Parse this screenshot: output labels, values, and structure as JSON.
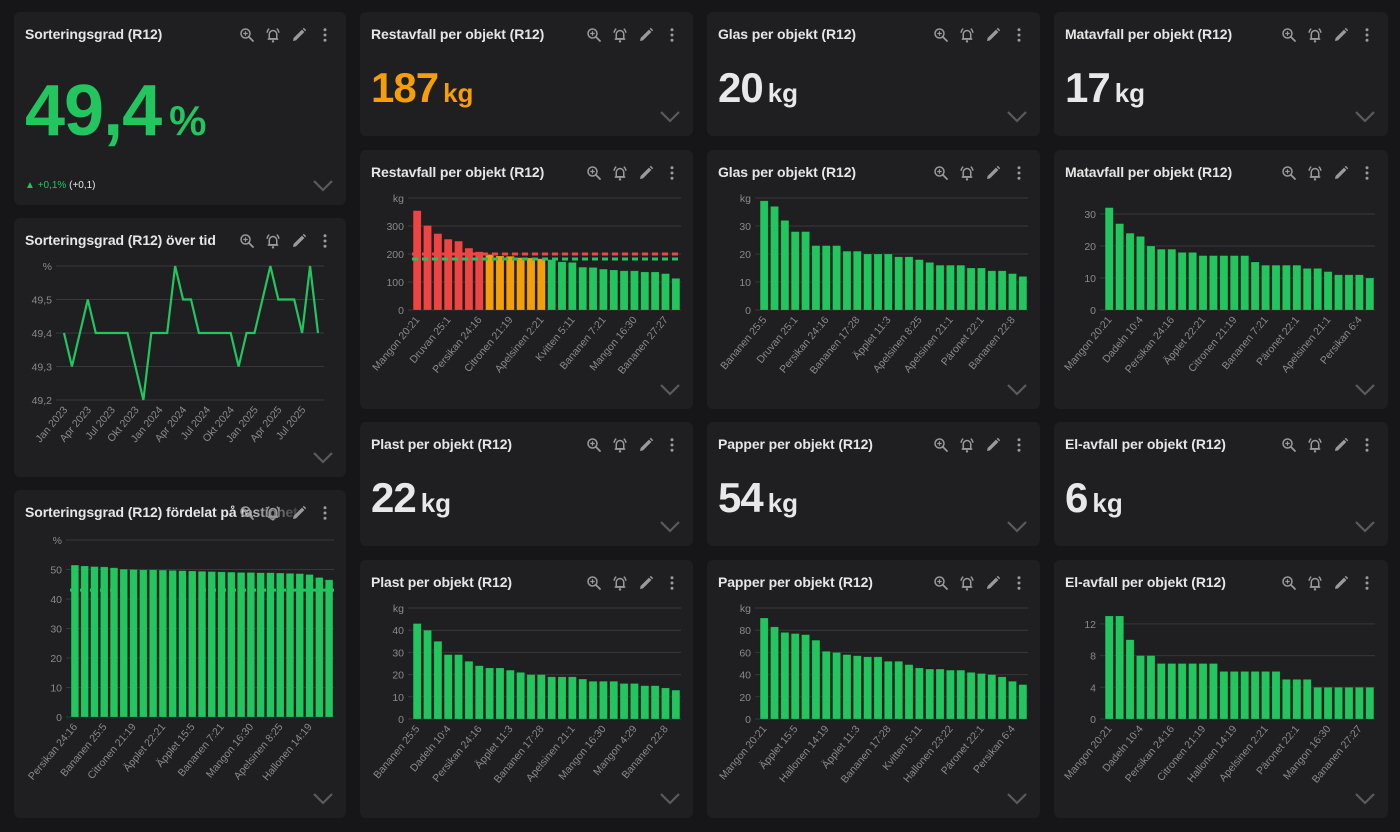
{
  "colors": {
    "green": "#22c55e",
    "orange": "#f59e0b",
    "red": "#ef4444",
    "text": "#e6e6e6",
    "muted": "#8a8a8a",
    "grid": "#38383b",
    "icon": "#9a9a9a"
  },
  "icons": {
    "zoom": "zoom-in-icon",
    "alert": "alarm-bell-icon",
    "edit": "pencil-icon",
    "more": "vertical-dots-icon",
    "expand": "chevron-down-icon"
  },
  "panels": {
    "sortering_kpi": {
      "title": "Sorteringsgrad (R12)",
      "value": "49,4",
      "unit": "%",
      "delta_arrow": "▲",
      "delta_pct": "+0,1%",
      "delta_abs": "(+0,1)"
    },
    "sortering_tid": {
      "title": "Sorteringsgrad (R12) över tid"
    },
    "sortering_fordelat": {
      "title": "Sorteringsgrad (R12) fördelat på fastighet"
    },
    "restavfall_kpi": {
      "title": "Restavfall per objekt (R12)",
      "value": "187",
      "unit": "kg"
    },
    "glas_kpi": {
      "title": "Glas per objekt (R12)",
      "value": "20",
      "unit": "kg"
    },
    "matavfall_kpi": {
      "title": "Matavfall per objekt (R12)",
      "value": "17",
      "unit": "kg"
    },
    "restavfall_chart": {
      "title": "Restavfall per objekt (R12)"
    },
    "glas_chart": {
      "title": "Glas per objekt (R12)"
    },
    "matavfall_chart": {
      "title": "Matavfall per objekt (R12)"
    },
    "plast_kpi": {
      "title": "Plast per objekt (R12)",
      "value": "22",
      "unit": "kg"
    },
    "papper_kpi": {
      "title": "Papper per objekt (R12)",
      "value": "54",
      "unit": "kg"
    },
    "elavfall_kpi": {
      "title": "El-avfall per objekt (R12)",
      "value": "6",
      "unit": "kg"
    },
    "plast_chart": {
      "title": "Plast per objekt (R12)"
    },
    "papper_chart": {
      "title": "Papper per objekt (R12)"
    },
    "elavfall_chart": {
      "title": "El-avfall per objekt (R12)"
    }
  },
  "chart_data": [
    {
      "id": "sortering_tid",
      "type": "line",
      "title": "Sorteringsgrad (R12) över tid",
      "ylabel": "%",
      "ylim": [
        49.2,
        49.6
      ],
      "yticks": [
        "49,2",
        "49,3",
        "49,4",
        "49,5",
        "%"
      ],
      "ytick_values": [
        49.2,
        49.3,
        49.4,
        49.5,
        49.6
      ],
      "xtick_labels": [
        "Jan 2023",
        "Apr 2023",
        "Jul 2023",
        "Okt 2023",
        "Jan 2024",
        "Apr 2024",
        "Jul 2024",
        "Okt 2024",
        "Jan 2025",
        "Apr 2025",
        "Jul 2025"
      ],
      "xtick_every": 3,
      "values": [
        49.4,
        49.3,
        49.4,
        49.5,
        49.4,
        49.4,
        49.4,
        49.4,
        49.4,
        49.3,
        49.2,
        49.4,
        49.4,
        49.4,
        49.6,
        49.5,
        49.5,
        49.4,
        49.4,
        49.4,
        49.4,
        49.4,
        49.3,
        49.4,
        49.4,
        49.5,
        49.6,
        49.5,
        49.5,
        49.5,
        49.4,
        49.6,
        49.4
      ],
      "color": "#22c55e",
      "grid": true
    },
    {
      "id": "sortering_fordelat",
      "type": "bar",
      "title": "Sorteringsgrad (R12) fördelat på fastighet",
      "ylabel": "%",
      "ylim": [
        0,
        60
      ],
      "yticks": [
        "0",
        "10",
        "20",
        "30",
        "40",
        "50",
        "%"
      ],
      "ytick_values": [
        0,
        10,
        20,
        30,
        40,
        50,
        60
      ],
      "xtick_labels": [
        "Persikan 24:16",
        "Bananen 25:5",
        "Citronen 21:19",
        "Äpplet 22:21",
        "Äpplet 15:5",
        "Bananen 7:21",
        "Mangon 16:30",
        "Apelsinen 8:25",
        "Hallonen 14:19"
      ],
      "xtick_every": 3,
      "values": [
        51.5,
        51.2,
        51.0,
        50.9,
        50.6,
        50.1,
        50.0,
        49.9,
        49.9,
        49.8,
        49.7,
        49.6,
        49.5,
        49.4,
        49.3,
        49.2,
        49.1,
        49.0,
        49.0,
        48.9,
        48.9,
        48.8,
        48.7,
        48.6,
        48.3,
        47.3,
        46.5
      ],
      "color": "#22c55e",
      "reference_lines": [
        {
          "value": 43,
          "color": "#22c55e",
          "style": "dashed"
        }
      ],
      "grid": true
    },
    {
      "id": "restavfall_chart",
      "type": "bar",
      "title": "Restavfall per objekt (R12)",
      "ylabel": "kg",
      "ylim": [
        0,
        400
      ],
      "yticks": [
        "0",
        "100",
        "200",
        "300",
        "kg"
      ],
      "ytick_values": [
        0,
        100,
        200,
        300,
        400
      ],
      "xtick_labels": [
        "Mangon 20:21",
        "Druvan 25:1",
        "Persikan 24:16",
        "Citronen 21:19",
        "Apelsinen 2:21",
        "Kvitten 5:11",
        "Bananen 7:21",
        "Mangon 16:30",
        "Bananen 27:27"
      ],
      "xtick_every": 3,
      "values": [
        355,
        302,
        273,
        253,
        246,
        221,
        208,
        198,
        193,
        192,
        187,
        186,
        183,
        180,
        172,
        170,
        153,
        152,
        146,
        143,
        140,
        140,
        136,
        136,
        130,
        113
      ],
      "bar_colors": [
        "#ef4444",
        "#ef4444",
        "#ef4444",
        "#ef4444",
        "#ef4444",
        "#ef4444",
        "#ef4444",
        "#f59e0b",
        "#f59e0b",
        "#f59e0b",
        "#f59e0b",
        "#f59e0b",
        "#f59e0b",
        "#22c55e",
        "#22c55e",
        "#22c55e",
        "#22c55e",
        "#22c55e",
        "#22c55e",
        "#22c55e",
        "#22c55e",
        "#22c55e",
        "#22c55e",
        "#22c55e",
        "#22c55e",
        "#22c55e"
      ],
      "reference_lines": [
        {
          "value": 200,
          "color": "#ef4444",
          "style": "dashed"
        },
        {
          "value": 182,
          "color": "#22c55e",
          "style": "dashed"
        }
      ],
      "grid": true
    },
    {
      "id": "glas_chart",
      "type": "bar",
      "title": "Glas per objekt (R12)",
      "ylabel": "kg",
      "ylim": [
        0,
        40
      ],
      "yticks": [
        "0",
        "10",
        "20",
        "30",
        "kg"
      ],
      "ytick_values": [
        0,
        10,
        20,
        30,
        40
      ],
      "xtick_labels": [
        "Bananen 25:5",
        "Druvan 25:1",
        "Persikan 24:16",
        "Bananen 17:28",
        "Äpplet 11:3",
        "Apelsinen 8:25",
        "Apelsinen 21:1",
        "Päronet 22:1",
        "Bananen 22:8"
      ],
      "xtick_every": 3,
      "values": [
        39,
        37,
        32,
        28,
        28,
        23,
        23,
        23,
        21,
        21,
        20,
        20,
        20,
        19,
        19,
        18,
        17,
        16,
        16,
        16,
        15,
        15,
        14,
        14,
        13,
        12
      ],
      "color": "#22c55e",
      "grid": true
    },
    {
      "id": "matavfall_chart",
      "type": "bar",
      "title": "Matavfall per objekt (R12)",
      "ylabel": "",
      "ylim": [
        0,
        35
      ],
      "yticks": [
        "0",
        "10",
        "20",
        "30"
      ],
      "ytick_values": [
        0,
        10,
        20,
        30
      ],
      "xtick_labels": [
        "Mangon 20:21",
        "Dadeln 10:4",
        "Persikan 24:16",
        "Äpplet 22:21",
        "Citronen 21:19",
        "Bananen 7:21",
        "Päronet 22:1",
        "Apelsinen 21:1",
        "Persikan 6:4"
      ],
      "xtick_every": 3,
      "values": [
        32,
        27,
        24,
        23,
        20,
        19,
        19,
        18,
        18,
        17,
        17,
        17,
        17,
        17,
        15,
        14,
        14,
        14,
        14,
        13,
        13,
        12,
        11,
        11,
        11,
        10
      ],
      "color": "#22c55e",
      "grid": true
    },
    {
      "id": "plast_chart",
      "type": "bar",
      "title": "Plast per objekt (R12)",
      "ylabel": "kg",
      "ylim": [
        0,
        50
      ],
      "yticks": [
        "0",
        "10",
        "20",
        "30",
        "40",
        "kg"
      ],
      "ytick_values": [
        0,
        10,
        20,
        30,
        40,
        50
      ],
      "xtick_labels": [
        "Bananen 25:5",
        "Dadeln 10:4",
        "Persikan 24:16",
        "Äpplet 11:3",
        "Bananen 17:28",
        "Apelsinen 21:1",
        "Mangon 16:30",
        "Mangon 4:29",
        "Bananen 22:8"
      ],
      "xtick_every": 3,
      "values": [
        43,
        40,
        35,
        29,
        29,
        26,
        24,
        23,
        23,
        22,
        21,
        20,
        20,
        19,
        19,
        19,
        18,
        17,
        17,
        17,
        16,
        16,
        15,
        15,
        14,
        13
      ],
      "color": "#22c55e",
      "grid": true
    },
    {
      "id": "papper_chart",
      "type": "bar",
      "title": "Papper per objekt (R12)",
      "ylabel": "kg",
      "ylim": [
        0,
        100
      ],
      "yticks": [
        "0",
        "20",
        "40",
        "60",
        "80",
        "kg"
      ],
      "ytick_values": [
        0,
        20,
        40,
        60,
        80,
        100
      ],
      "xtick_labels": [
        "Mangon 20:21",
        "Äpplet 15:5",
        "Hallonen 14:19",
        "Äpplet 11:3",
        "Bananen 17:28",
        "Kvitten 5:11",
        "Hallonen 23:22",
        "Päronet 22:1",
        "Persikan 6:4"
      ],
      "xtick_every": 3,
      "values": [
        91,
        83,
        78,
        77,
        76,
        71,
        61,
        60,
        58,
        57,
        56,
        56,
        52,
        52,
        49,
        46,
        45,
        45,
        44,
        44,
        42,
        41,
        40,
        38,
        34,
        31
      ],
      "color": "#22c55e",
      "grid": true
    },
    {
      "id": "elavfall_chart",
      "type": "bar",
      "title": "El-avfall per objekt (R12)",
      "ylabel": "",
      "ylim": [
        0,
        14
      ],
      "yticks": [
        "0",
        "4",
        "8",
        "12"
      ],
      "ytick_values": [
        0,
        4,
        8,
        12
      ],
      "xtick_labels": [
        "Mangon 20:21",
        "Dadeln 10:4",
        "Persikan 24:16",
        "Citronen 21:19",
        "Hallonen 14:19",
        "Apelsinen 2:21",
        "Päronet 22:1",
        "Mangon 16:30",
        "Bananen 27:27"
      ],
      "xtick_every": 3,
      "values": [
        13,
        13,
        10,
        8,
        8,
        7,
        7,
        7,
        7,
        7,
        7,
        6,
        6,
        6,
        6,
        6,
        6,
        5,
        5,
        5,
        4,
        4,
        4,
        4,
        4,
        4
      ],
      "color": "#22c55e",
      "grid": true
    }
  ]
}
